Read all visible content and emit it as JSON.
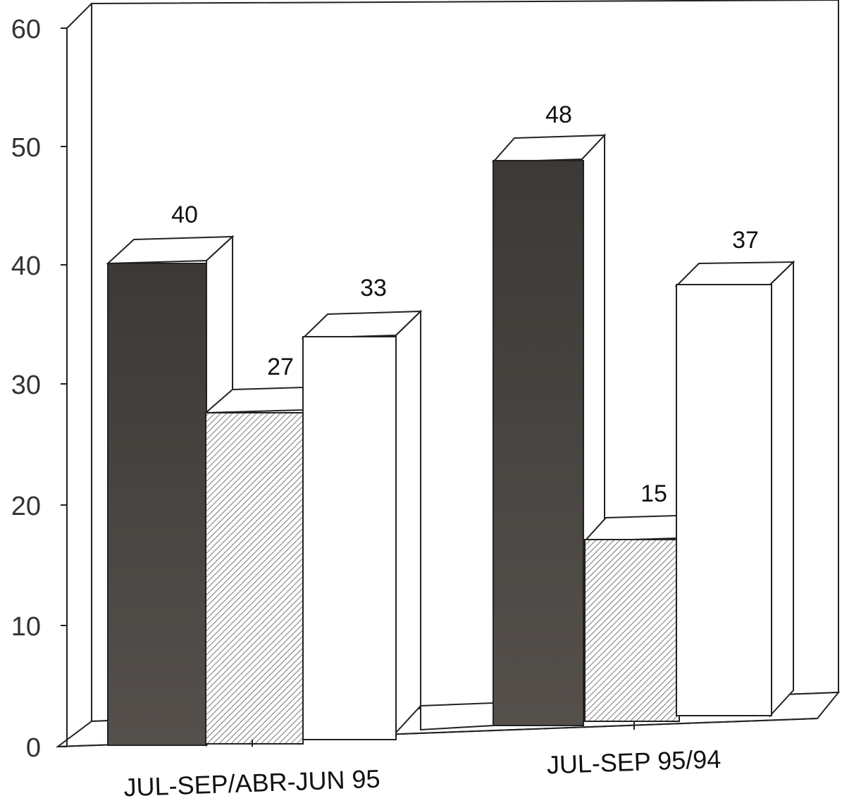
{
  "chart_data": {
    "type": "bar",
    "categories": [
      "JUL-SEP/ABR-JUN 95",
      "JUL-SEP 95/94"
    ],
    "series": [
      {
        "values": [
          40,
          48
        ],
        "fill": "dark"
      },
      {
        "values": [
          27,
          15
        ],
        "fill": "hatched"
      },
      {
        "values": [
          33,
          37
        ],
        "fill": "white"
      }
    ],
    "data_labels": [
      [
        "40",
        "27",
        "33"
      ],
      [
        "48",
        "15",
        "37"
      ]
    ],
    "y_ticks": [
      "0",
      "10",
      "20",
      "30",
      "40",
      "50",
      "60"
    ],
    "ylim": [
      0,
      60
    ],
    "title": "",
    "xlabel": "",
    "ylabel": "",
    "grid": false,
    "legend": "none",
    "style": "3d",
    "colors": {
      "dark": "#4a4643",
      "hatch_line": "#555555",
      "white": "#ffffff",
      "outline": "#222222"
    }
  }
}
